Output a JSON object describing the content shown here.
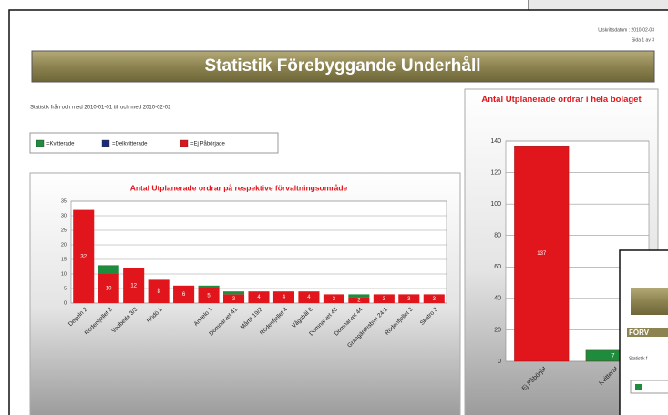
{
  "header": {
    "print_date": "Utskriftsdatum : 2010-02-03",
    "page": "Sida 1 av 3",
    "title": "Statistik Förebyggande Underhåll",
    "period": "Statistik från och med 2010-01-01 till och med 2010-02-02"
  },
  "chart_data": [
    {
      "type": "stacked_bar",
      "title": "Antal Utplanerade ordrar på respektive förvaltningsområde",
      "categories": [
        "Degeln 2",
        "Rödenfjellet 2",
        "Vedbeda 3/3",
        "Rödö 1",
        null,
        "Annelo 1",
        "Domnarvet 41",
        "Mårtä 19/2",
        "Rödenfjellet 4",
        "Vågsbäl 8",
        "Domnarvet 43",
        "Domnarvet 44",
        "Grangärdesbyn 24:1",
        "Rödenfjellet 3",
        "Skatro 3"
      ],
      "series": [
        {
          "name": "=Kvitterade",
          "color": "#1e8c3c",
          "values": [
            0,
            3,
            0,
            0,
            0,
            1,
            1,
            0,
            0,
            0,
            0,
            1,
            0,
            0,
            0
          ]
        },
        {
          "name": "=Delkvitterade",
          "color": "#1c2a7a",
          "values": [
            0,
            0,
            0,
            0,
            0,
            0,
            0,
            0,
            0,
            0,
            0,
            0,
            0,
            0,
            0
          ]
        },
        {
          "name": "=Ej Påbörjade",
          "color": "#e0161c",
          "values": [
            32,
            10,
            12,
            8,
            6,
            5,
            3,
            4,
            4,
            4,
            3,
            2,
            3,
            3,
            3
          ]
        }
      ],
      "ylim": [
        0,
        35
      ],
      "yticks": [
        0,
        5,
        10,
        15,
        20,
        25,
        30,
        35
      ],
      "grid": true
    },
    {
      "type": "bar",
      "title": "Antal Utplanerade ordrar i hela bolaget",
      "categories": [
        "Ej Påbörjat",
        "Kvitterat"
      ],
      "values": [
        137,
        7
      ],
      "colors": [
        "#e0161c",
        "#1e8c3c"
      ],
      "ylim": [
        0,
        140
      ],
      "yticks": [
        0,
        20,
        40,
        60,
        80,
        100,
        120,
        140
      ],
      "grid": true
    }
  ],
  "overlay": {
    "heading": "FÖRV",
    "text": "Statistik f"
  }
}
